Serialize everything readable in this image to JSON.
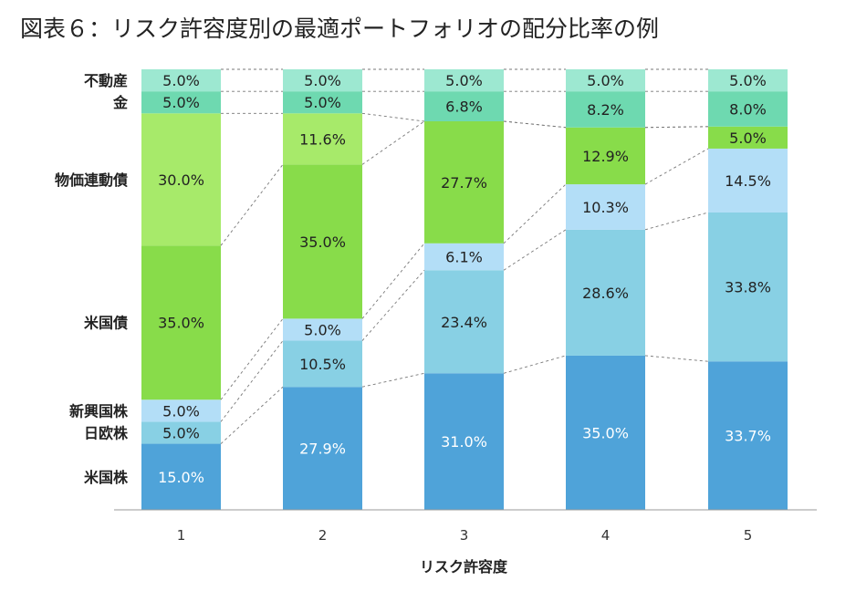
{
  "title": "図表６：リスク許容度別の最適ポートフォリオの配分比率の例",
  "chart_data": {
    "type": "bar",
    "stacked": true,
    "xlabel": "リスク許容度",
    "categories": [
      "1",
      "2",
      "3",
      "4",
      "5"
    ],
    "ylim": [
      0,
      100
    ],
    "series": [
      {
        "name": "米国株",
        "color": "#4fa3d9",
        "label_color": "#ffffff",
        "values": [
          15.0,
          27.9,
          31.0,
          35.0,
          33.7
        ]
      },
      {
        "name": "日欧株",
        "color": "#88d0e4",
        "label_color": "#222222",
        "values": [
          5.0,
          10.5,
          23.4,
          28.6,
          33.8
        ]
      },
      {
        "name": "新興国株",
        "color": "#b3def7",
        "label_color": "#222222",
        "values": [
          5.0,
          5.0,
          6.1,
          10.3,
          14.5
        ]
      },
      {
        "name": "米国債",
        "color": "#88dc4a",
        "label_color": "#222222",
        "values": [
          35.0,
          35.0,
          27.7,
          12.9,
          5.0
        ]
      },
      {
        "name": "物価連動債",
        "color": "#a7ea6a",
        "label_color": "#222222",
        "values": [
          30.0,
          11.6,
          0,
          0,
          0
        ]
      },
      {
        "name": "金",
        "color": "#6ed9b0",
        "label_color": "#222222",
        "values": [
          5.0,
          5.0,
          6.8,
          8.2,
          8.0
        ]
      },
      {
        "name": "不動産",
        "color": "#9de8d1",
        "label_color": "#222222",
        "values": [
          5.0,
          5.0,
          5.0,
          5.0,
          5.0
        ]
      }
    ],
    "value_labels": [
      [
        "15.0%",
        "27.9%",
        "31.0%",
        "35.0%",
        "33.7%"
      ],
      [
        "5.0%",
        "10.5%",
        "23.4%",
        "28.6%",
        "33.8%"
      ],
      [
        "5.0%",
        "5.0%",
        "6.1%",
        "10.3%",
        "14.5%"
      ],
      [
        "35.0%",
        "35.0%",
        "27.7%",
        "12.9%",
        "5.0%"
      ],
      [
        "30.0%",
        "11.6%",
        "",
        "",
        ""
      ],
      [
        "5.0%",
        "5.0%",
        "6.8%",
        "8.2%",
        "8.0%"
      ],
      [
        "5.0%",
        "5.0%",
        "5.0%",
        "5.0%",
        "5.0%"
      ]
    ],
    "connector_lines": "dashed",
    "legend": "left-of-first-bar"
  }
}
